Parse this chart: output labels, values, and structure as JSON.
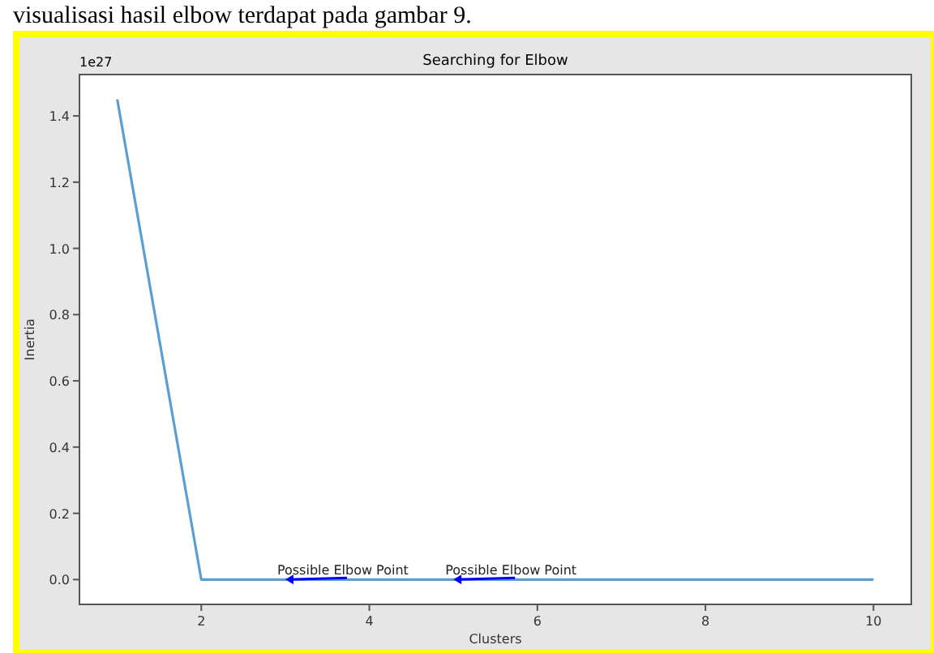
{
  "chart_data": {
    "type": "line",
    "title": "Searching for Elbow",
    "xlabel": "Clusters",
    "ylabel": "Inertia",
    "x": [
      1,
      2,
      3,
      4,
      5,
      6,
      7,
      8,
      9,
      10
    ],
    "series": [
      {
        "color": "#5a9fd4",
        "values": [
          1.45,
          0,
          0,
          0,
          0,
          0,
          0,
          0,
          0,
          0
        ]
      }
    ],
    "xlim": [
      0.55,
      10.45
    ],
    "xticks": [
      2,
      4,
      6,
      8,
      10
    ],
    "ylim": [
      -0.075,
      1.525
    ],
    "yticks": [
      {
        "value": 0,
        "label": "0.0"
      },
      {
        "value": 0.2,
        "label": "0.2"
      },
      {
        "value": 0.4,
        "label": "0.4"
      },
      {
        "value": 0.6,
        "label": "0.6"
      },
      {
        "value": 0.8,
        "label": "0.8"
      },
      {
        "value": 1,
        "label": "1.0"
      },
      {
        "value": 1.2,
        "label": "1.2"
      },
      {
        "value": 1.4,
        "label": "1.4"
      }
    ],
    "grid": false,
    "marker": "none",
    "line_style": "solid",
    "annotations": [
      "visualisasi hasil elbow terdapat pada gambar 9.",
      "1e27",
      {
        "text": "Possible Elbow Point",
        "x": 3,
        "y": 0
      },
      {
        "text": "Possible Elbow Point",
        "x": 5,
        "y": 0
      }
    ]
  }
}
